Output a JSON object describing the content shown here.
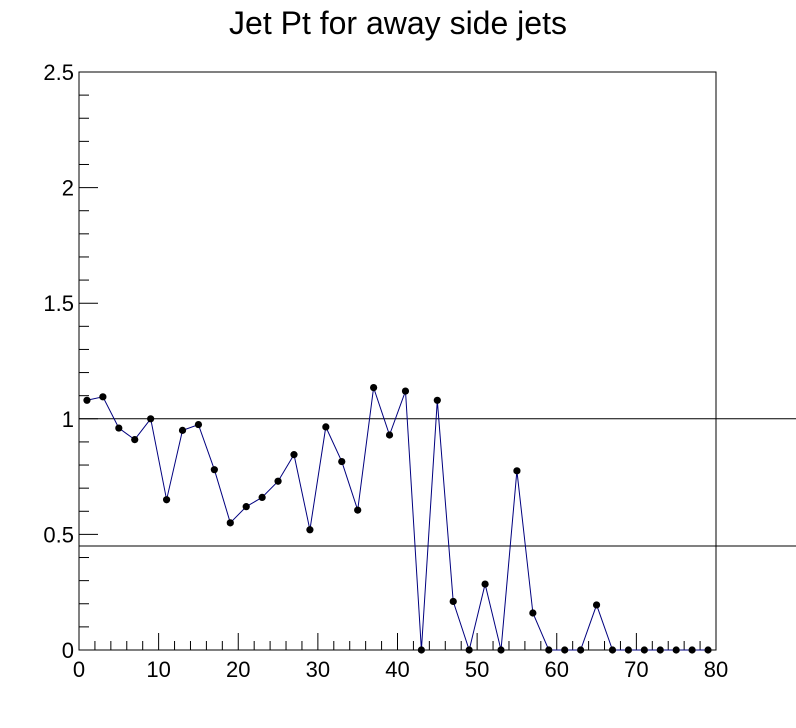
{
  "chart_data": {
    "type": "line",
    "title": "Jet Pt for away side jets",
    "xlabel": "",
    "ylabel": "",
    "xlim": [
      0,
      80
    ],
    "ylim": [
      0,
      2.5
    ],
    "x_ticks": [
      "0",
      "10",
      "20",
      "30",
      "40",
      "50",
      "60",
      "70",
      "80"
    ],
    "y_ticks": [
      "0",
      "0.5",
      "1",
      "1.5",
      "2",
      "2.5"
    ],
    "grid": false,
    "legend": "none",
    "reference_lines_y": [
      1.0,
      0.45
    ],
    "line_color": "#00007f",
    "marker_color": "#000000",
    "x": [
      1,
      3,
      5,
      7,
      9,
      11,
      13,
      15,
      17,
      19,
      21,
      23,
      25,
      27,
      29,
      31,
      33,
      35,
      37,
      39,
      41,
      43,
      45,
      47,
      49,
      51,
      53,
      55,
      57,
      59,
      61,
      63,
      65,
      67,
      69,
      71,
      73,
      75,
      77,
      79
    ],
    "y": [
      1.08,
      1.095,
      0.96,
      0.91,
      1.0,
      0.65,
      0.95,
      0.975,
      0.78,
      0.55,
      0.62,
      0.66,
      0.73,
      0.845,
      0.52,
      0.965,
      0.815,
      0.605,
      1.135,
      0.93,
      1.12,
      0.0,
      1.08,
      0.21,
      0.0,
      0.285,
      0.0,
      0.775,
      0.16,
      0.0,
      0.0,
      0.0,
      0.195,
      0.0,
      0.0,
      0.0,
      0.0,
      0.0,
      0.0,
      0.0
    ]
  }
}
